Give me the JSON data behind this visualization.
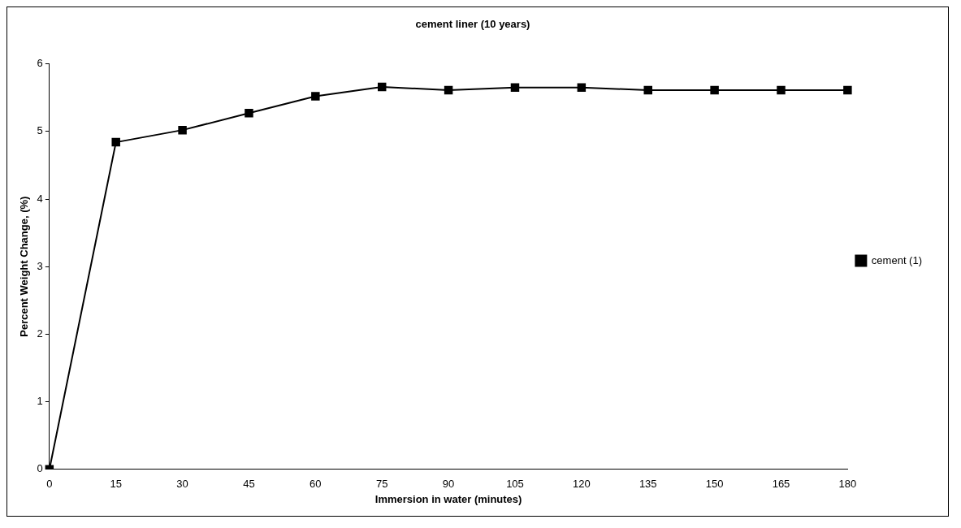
{
  "chart_data": {
    "type": "line",
    "title": "cement liner (10 years)",
    "xlabel": "Immersion in water (minutes)",
    "ylabel": "Percent Weight Change, (%)",
    "categories": [
      "0",
      "15",
      "30",
      "45",
      "60",
      "75",
      "90",
      "105",
      "120",
      "135",
      "150",
      "165",
      "180"
    ],
    "series": [
      {
        "name": "cement (1)",
        "color": "#000000",
        "values": [
          0,
          4.84,
          5.02,
          5.27,
          5.52,
          5.66,
          5.61,
          5.65,
          5.65,
          5.61,
          5.61,
          5.61,
          5.61
        ]
      }
    ],
    "ylim": [
      0,
      6
    ],
    "yticks": [
      0,
      1,
      2,
      3,
      4,
      5,
      6
    ],
    "grid": false,
    "legend": "right",
    "marker": "square",
    "line_style": "solid"
  }
}
